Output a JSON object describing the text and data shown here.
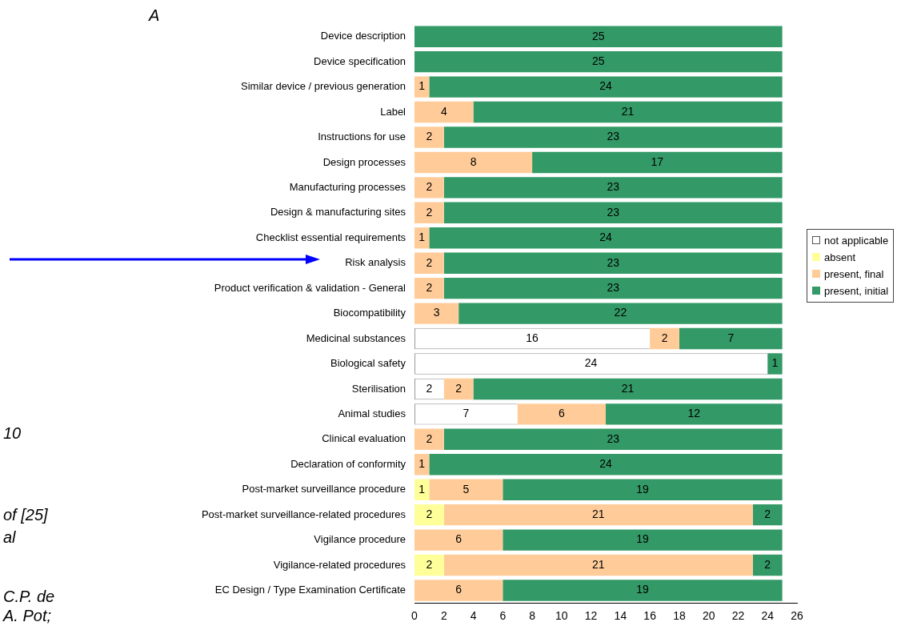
{
  "chart_data": {
    "type": "bar",
    "orientation": "horizontal",
    "stacked": true,
    "title": "A",
    "categories": [
      "Device description",
      "Device specification",
      "Similar device / previous generation",
      "Label",
      "Instructions for use",
      "Design processes",
      "Manufacturing processes",
      "Design & manufacturing sites",
      "Checklist essential requirements",
      "Risk analysis",
      "Product verification & validation - General",
      "Biocompatibility",
      "Medicinal substances",
      "Biological safety",
      "Sterilisation",
      "Animal studies",
      "Clinical evaluation",
      "Declaration of conformity",
      "Post-market surveillance procedure",
      "Post-market surveillance-related procedures",
      "Vigilance procedure",
      "Vigilance-related procedures",
      "EC Design / Type Examination Certificate"
    ],
    "series": [
      {
        "name": "not applicable",
        "color": "#ffffff",
        "values": [
          null,
          null,
          null,
          null,
          null,
          null,
          null,
          null,
          null,
          null,
          null,
          null,
          16,
          24,
          2,
          7,
          null,
          null,
          null,
          null,
          null,
          null,
          null
        ]
      },
      {
        "name": "absent",
        "color": "#ffff99",
        "values": [
          null,
          null,
          null,
          null,
          null,
          null,
          null,
          null,
          null,
          null,
          null,
          null,
          null,
          null,
          null,
          null,
          null,
          null,
          1,
          2,
          null,
          2,
          null
        ]
      },
      {
        "name": "present, final",
        "color": "#ffcc99",
        "values": [
          null,
          null,
          1,
          4,
          2,
          8,
          2,
          2,
          1,
          2,
          2,
          3,
          2,
          null,
          2,
          6,
          2,
          1,
          5,
          21,
          6,
          21,
          6
        ]
      },
      {
        "name": "present, initial",
        "color": "#339966",
        "values": [
          25,
          25,
          24,
          21,
          23,
          17,
          23,
          23,
          24,
          23,
          23,
          22,
          7,
          1,
          21,
          12,
          23,
          24,
          19,
          2,
          19,
          2,
          19
        ]
      }
    ],
    "xlim": [
      0,
      26
    ],
    "xticks": [
      0,
      2,
      4,
      6,
      8,
      10,
      12,
      14,
      16,
      18,
      20,
      22,
      24,
      26
    ],
    "grid": false,
    "legend": "right",
    "data_labels": true,
    "annotations": [
      "10",
      "of [25]",
      "al",
      "C.P. de",
      "A. Pot;"
    ]
  }
}
